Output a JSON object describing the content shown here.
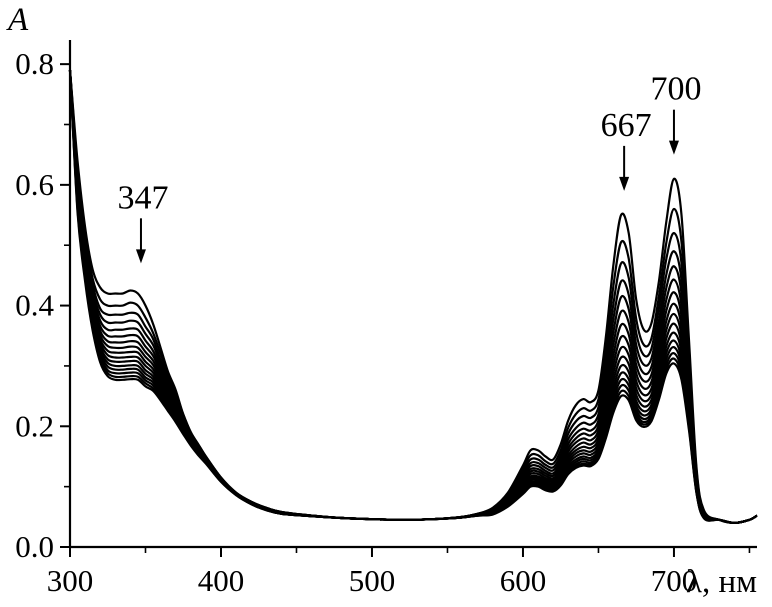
{
  "chart_data": {
    "type": "line",
    "title": "",
    "xlabel": "λ, нм",
    "ylabel": "A",
    "xlim": [
      300,
      755
    ],
    "ylim": [
      0,
      0.84
    ],
    "xticks": [
      300,
      400,
      500,
      600,
      700
    ],
    "xtick_labels": [
      "300",
      "400",
      "500",
      "600",
      "700"
    ],
    "yticks": [
      0.0,
      0.2,
      0.4,
      0.6,
      0.8
    ],
    "ytick_labels": [
      "0.0",
      "0.2",
      "0.4",
      "0.6",
      "0.8"
    ],
    "grid": false,
    "legend": "none",
    "annotations": [
      {
        "text": "347",
        "x": 347,
        "y": 0.47
      },
      {
        "text": "667",
        "x": 667,
        "y": 0.59
      },
      {
        "text": "700",
        "x": 700,
        "y": 0.65
      }
    ],
    "x": [
      300,
      305,
      310,
      315,
      320,
      325,
      330,
      335,
      340,
      345,
      350,
      355,
      360,
      365,
      370,
      375,
      380,
      385,
      390,
      400,
      410,
      420,
      430,
      440,
      460,
      480,
      500,
      520,
      540,
      560,
      570,
      580,
      590,
      600,
      605,
      610,
      615,
      620,
      625,
      630,
      635,
      640,
      645,
      650,
      655,
      660,
      665,
      670,
      675,
      680,
      685,
      690,
      695,
      700,
      705,
      710,
      715,
      720,
      730,
      740,
      750,
      755
    ],
    "series": [
      {
        "values": [
          0.79,
          0.64,
          0.53,
          0.46,
          0.43,
          0.42,
          0.42,
          0.42,
          0.425,
          0.42,
          0.4,
          0.37,
          0.33,
          0.29,
          0.26,
          0.22,
          0.19,
          0.17,
          0.15,
          0.115,
          0.09,
          0.075,
          0.065,
          0.058,
          0.052,
          0.048,
          0.046,
          0.045,
          0.046,
          0.05,
          0.055,
          0.065,
          0.09,
          0.135,
          0.16,
          0.16,
          0.15,
          0.145,
          0.17,
          0.21,
          0.235,
          0.245,
          0.24,
          0.26,
          0.35,
          0.47,
          0.55,
          0.52,
          0.41,
          0.36,
          0.37,
          0.44,
          0.54,
          0.61,
          0.55,
          0.34,
          0.13,
          0.06,
          0.045,
          0.04,
          0.045,
          0.052
        ]
      },
      {
        "values": [
          0.79,
          0.63,
          0.52,
          0.445,
          0.41,
          0.4,
          0.4,
          0.4,
          0.405,
          0.4,
          0.38,
          0.355,
          0.32,
          0.285,
          0.255,
          0.22,
          0.19,
          0.17,
          0.15,
          0.115,
          0.09,
          0.075,
          0.065,
          0.058,
          0.052,
          0.048,
          0.046,
          0.045,
          0.046,
          0.05,
          0.055,
          0.064,
          0.088,
          0.13,
          0.152,
          0.152,
          0.142,
          0.138,
          0.16,
          0.198,
          0.22,
          0.23,
          0.226,
          0.245,
          0.325,
          0.435,
          0.505,
          0.478,
          0.378,
          0.335,
          0.345,
          0.415,
          0.505,
          0.56,
          0.505,
          0.315,
          0.125,
          0.058,
          0.045,
          0.04,
          0.045,
          0.052
        ]
      },
      {
        "values": [
          0.79,
          0.62,
          0.51,
          0.435,
          0.395,
          0.385,
          0.385,
          0.385,
          0.388,
          0.385,
          0.365,
          0.345,
          0.31,
          0.28,
          0.25,
          0.217,
          0.188,
          0.168,
          0.149,
          0.115,
          0.09,
          0.075,
          0.065,
          0.058,
          0.052,
          0.048,
          0.046,
          0.045,
          0.046,
          0.05,
          0.055,
          0.063,
          0.086,
          0.125,
          0.145,
          0.145,
          0.136,
          0.132,
          0.152,
          0.188,
          0.208,
          0.217,
          0.214,
          0.232,
          0.305,
          0.405,
          0.47,
          0.446,
          0.355,
          0.318,
          0.328,
          0.395,
          0.478,
          0.52,
          0.47,
          0.295,
          0.12,
          0.056,
          0.045,
          0.04,
          0.045,
          0.052
        ]
      },
      {
        "values": [
          0.79,
          0.615,
          0.5,
          0.425,
          0.385,
          0.372,
          0.372,
          0.372,
          0.375,
          0.372,
          0.353,
          0.335,
          0.303,
          0.274,
          0.245,
          0.214,
          0.186,
          0.166,
          0.148,
          0.114,
          0.089,
          0.074,
          0.064,
          0.057,
          0.052,
          0.048,
          0.046,
          0.045,
          0.046,
          0.05,
          0.055,
          0.062,
          0.084,
          0.12,
          0.139,
          0.139,
          0.131,
          0.127,
          0.145,
          0.179,
          0.197,
          0.206,
          0.203,
          0.22,
          0.288,
          0.38,
          0.44,
          0.418,
          0.335,
          0.302,
          0.312,
          0.375,
          0.452,
          0.49,
          0.442,
          0.28,
          0.115,
          0.055,
          0.045,
          0.04,
          0.045,
          0.052
        ]
      },
      {
        "values": [
          0.79,
          0.61,
          0.495,
          0.418,
          0.375,
          0.36,
          0.36,
          0.36,
          0.362,
          0.36,
          0.342,
          0.325,
          0.296,
          0.268,
          0.24,
          0.211,
          0.184,
          0.164,
          0.147,
          0.113,
          0.089,
          0.074,
          0.064,
          0.057,
          0.052,
          0.048,
          0.046,
          0.045,
          0.046,
          0.05,
          0.055,
          0.061,
          0.082,
          0.116,
          0.134,
          0.134,
          0.126,
          0.122,
          0.139,
          0.171,
          0.188,
          0.196,
          0.193,
          0.21,
          0.273,
          0.358,
          0.414,
          0.394,
          0.318,
          0.288,
          0.298,
          0.358,
          0.43,
          0.465,
          0.42,
          0.267,
          0.111,
          0.054,
          0.045,
          0.04,
          0.045,
          0.052
        ]
      },
      {
        "values": [
          0.79,
          0.605,
          0.49,
          0.41,
          0.366,
          0.35,
          0.349,
          0.349,
          0.351,
          0.349,
          0.332,
          0.317,
          0.29,
          0.263,
          0.236,
          0.208,
          0.182,
          0.163,
          0.146,
          0.113,
          0.089,
          0.074,
          0.064,
          0.057,
          0.052,
          0.048,
          0.046,
          0.045,
          0.046,
          0.05,
          0.054,
          0.06,
          0.08,
          0.112,
          0.129,
          0.129,
          0.122,
          0.118,
          0.134,
          0.164,
          0.18,
          0.188,
          0.185,
          0.201,
          0.26,
          0.338,
          0.39,
          0.372,
          0.302,
          0.275,
          0.285,
          0.342,
          0.41,
          0.443,
          0.4,
          0.256,
          0.107,
          0.053,
          0.045,
          0.04,
          0.045,
          0.052
        ]
      },
      {
        "values": [
          0.79,
          0.6,
          0.485,
          0.403,
          0.358,
          0.341,
          0.339,
          0.339,
          0.341,
          0.339,
          0.323,
          0.309,
          0.284,
          0.258,
          0.232,
          0.205,
          0.18,
          0.161,
          0.145,
          0.112,
          0.088,
          0.073,
          0.063,
          0.056,
          0.051,
          0.048,
          0.046,
          0.045,
          0.046,
          0.049,
          0.054,
          0.059,
          0.078,
          0.108,
          0.125,
          0.125,
          0.118,
          0.114,
          0.129,
          0.158,
          0.173,
          0.18,
          0.177,
          0.193,
          0.248,
          0.32,
          0.368,
          0.352,
          0.288,
          0.263,
          0.273,
          0.327,
          0.392,
          0.422,
          0.382,
          0.246,
          0.104,
          0.052,
          0.045,
          0.04,
          0.045,
          0.052
        ]
      },
      {
        "values": [
          0.79,
          0.595,
          0.48,
          0.397,
          0.351,
          0.333,
          0.33,
          0.33,
          0.332,
          0.33,
          0.315,
          0.302,
          0.278,
          0.253,
          0.228,
          0.202,
          0.178,
          0.16,
          0.144,
          0.112,
          0.088,
          0.073,
          0.063,
          0.056,
          0.051,
          0.048,
          0.046,
          0.045,
          0.046,
          0.049,
          0.054,
          0.058,
          0.076,
          0.105,
          0.121,
          0.121,
          0.114,
          0.111,
          0.125,
          0.152,
          0.166,
          0.173,
          0.17,
          0.185,
          0.237,
          0.304,
          0.348,
          0.334,
          0.275,
          0.252,
          0.262,
          0.313,
          0.375,
          0.403,
          0.365,
          0.237,
          0.101,
          0.051,
          0.045,
          0.04,
          0.045,
          0.052
        ]
      },
      {
        "values": [
          0.79,
          0.59,
          0.475,
          0.391,
          0.344,
          0.325,
          0.322,
          0.322,
          0.323,
          0.322,
          0.307,
          0.295,
          0.272,
          0.248,
          0.224,
          0.199,
          0.176,
          0.159,
          0.143,
          0.111,
          0.088,
          0.073,
          0.063,
          0.056,
          0.051,
          0.048,
          0.046,
          0.045,
          0.046,
          0.049,
          0.054,
          0.058,
          0.075,
          0.102,
          0.117,
          0.117,
          0.111,
          0.108,
          0.121,
          0.147,
          0.16,
          0.166,
          0.164,
          0.178,
          0.227,
          0.29,
          0.33,
          0.318,
          0.263,
          0.242,
          0.252,
          0.3,
          0.36,
          0.386,
          0.35,
          0.229,
          0.098,
          0.05,
          0.045,
          0.04,
          0.045,
          0.052
        ]
      },
      {
        "values": [
          0.79,
          0.585,
          0.47,
          0.386,
          0.338,
          0.318,
          0.314,
          0.314,
          0.315,
          0.314,
          0.3,
          0.289,
          0.267,
          0.244,
          0.221,
          0.197,
          0.174,
          0.158,
          0.142,
          0.111,
          0.088,
          0.073,
          0.063,
          0.056,
          0.051,
          0.048,
          0.046,
          0.045,
          0.046,
          0.049,
          0.053,
          0.057,
          0.074,
          0.1,
          0.114,
          0.114,
          0.108,
          0.105,
          0.118,
          0.142,
          0.155,
          0.16,
          0.158,
          0.172,
          0.218,
          0.277,
          0.314,
          0.303,
          0.252,
          0.233,
          0.243,
          0.289,
          0.346,
          0.37,
          0.336,
          0.222,
          0.096,
          0.05,
          0.045,
          0.04,
          0.045,
          0.052
        ]
      },
      {
        "values": [
          0.79,
          0.58,
          0.465,
          0.381,
          0.332,
          0.311,
          0.307,
          0.307,
          0.308,
          0.307,
          0.293,
          0.283,
          0.262,
          0.24,
          0.218,
          0.195,
          0.173,
          0.157,
          0.142,
          0.11,
          0.087,
          0.072,
          0.062,
          0.055,
          0.051,
          0.048,
          0.046,
          0.045,
          0.046,
          0.049,
          0.053,
          0.056,
          0.072,
          0.097,
          0.111,
          0.111,
          0.105,
          0.102,
          0.114,
          0.138,
          0.15,
          0.155,
          0.153,
          0.166,
          0.21,
          0.265,
          0.3,
          0.29,
          0.242,
          0.225,
          0.235,
          0.279,
          0.333,
          0.355,
          0.323,
          0.215,
          0.094,
          0.049,
          0.045,
          0.04,
          0.045,
          0.052
        ]
      },
      {
        "values": [
          0.79,
          0.575,
          0.46,
          0.376,
          0.326,
          0.305,
          0.3,
          0.3,
          0.301,
          0.3,
          0.287,
          0.278,
          0.258,
          0.237,
          0.215,
          0.193,
          0.172,
          0.156,
          0.141,
          0.11,
          0.087,
          0.072,
          0.062,
          0.055,
          0.051,
          0.048,
          0.046,
          0.045,
          0.046,
          0.049,
          0.053,
          0.056,
          0.071,
          0.095,
          0.108,
          0.108,
          0.102,
          0.1,
          0.111,
          0.134,
          0.145,
          0.15,
          0.148,
          0.161,
          0.203,
          0.255,
          0.288,
          0.278,
          0.234,
          0.218,
          0.228,
          0.27,
          0.322,
          0.342,
          0.311,
          0.209,
          0.092,
          0.049,
          0.045,
          0.04,
          0.045,
          0.052
        ]
      },
      {
        "values": [
          0.79,
          0.57,
          0.455,
          0.371,
          0.321,
          0.299,
          0.294,
          0.294,
          0.295,
          0.294,
          0.281,
          0.273,
          0.254,
          0.234,
          0.213,
          0.191,
          0.171,
          0.155,
          0.14,
          0.109,
          0.087,
          0.072,
          0.062,
          0.055,
          0.051,
          0.048,
          0.046,
          0.045,
          0.046,
          0.049,
          0.053,
          0.055,
          0.07,
          0.093,
          0.106,
          0.106,
          0.1,
          0.098,
          0.108,
          0.13,
          0.141,
          0.146,
          0.144,
          0.157,
          0.197,
          0.246,
          0.277,
          0.268,
          0.227,
          0.212,
          0.222,
          0.262,
          0.312,
          0.331,
          0.301,
          0.204,
          0.091,
          0.048,
          0.045,
          0.04,
          0.045,
          0.052
        ]
      },
      {
        "values": [
          0.79,
          0.565,
          0.45,
          0.367,
          0.316,
          0.293,
          0.288,
          0.288,
          0.289,
          0.288,
          0.276,
          0.268,
          0.25,
          0.231,
          0.211,
          0.189,
          0.17,
          0.154,
          0.139,
          0.109,
          0.087,
          0.072,
          0.062,
          0.055,
          0.051,
          0.048,
          0.046,
          0.045,
          0.046,
          0.049,
          0.052,
          0.055,
          0.069,
          0.091,
          0.104,
          0.104,
          0.098,
          0.096,
          0.106,
          0.127,
          0.137,
          0.142,
          0.14,
          0.153,
          0.191,
          0.238,
          0.267,
          0.259,
          0.221,
          0.207,
          0.217,
          0.255,
          0.303,
          0.321,
          0.292,
          0.2,
          0.09,
          0.048,
          0.045,
          0.04,
          0.045,
          0.052
        ]
      },
      {
        "values": [
          0.79,
          0.56,
          0.445,
          0.363,
          0.311,
          0.288,
          0.282,
          0.282,
          0.283,
          0.282,
          0.271,
          0.263,
          0.246,
          0.228,
          0.209,
          0.188,
          0.169,
          0.153,
          0.139,
          0.108,
          0.086,
          0.071,
          0.061,
          0.055,
          0.051,
          0.048,
          0.046,
          0.045,
          0.046,
          0.049,
          0.052,
          0.054,
          0.068,
          0.089,
          0.102,
          0.102,
          0.096,
          0.094,
          0.104,
          0.124,
          0.134,
          0.138,
          0.137,
          0.149,
          0.186,
          0.23,
          0.258,
          0.25,
          0.215,
          0.203,
          0.212,
          0.249,
          0.295,
          0.312,
          0.284,
          0.196,
          0.089,
          0.048,
          0.045,
          0.04,
          0.045,
          0.052
        ]
      },
      {
        "values": [
          0.79,
          0.555,
          0.44,
          0.359,
          0.306,
          0.283,
          0.277,
          0.277,
          0.278,
          0.277,
          0.266,
          0.259,
          0.243,
          0.225,
          0.207,
          0.187,
          0.168,
          0.152,
          0.138,
          0.108,
          0.086,
          0.071,
          0.061,
          0.055,
          0.051,
          0.048,
          0.046,
          0.045,
          0.046,
          0.049,
          0.052,
          0.054,
          0.067,
          0.088,
          0.1,
          0.1,
          0.094,
          0.092,
          0.102,
          0.121,
          0.131,
          0.135,
          0.134,
          0.146,
          0.181,
          0.224,
          0.25,
          0.243,
          0.21,
          0.199,
          0.208,
          0.244,
          0.288,
          0.304,
          0.277,
          0.192,
          0.088,
          0.047,
          0.045,
          0.04,
          0.045,
          0.052
        ]
      }
    ]
  }
}
